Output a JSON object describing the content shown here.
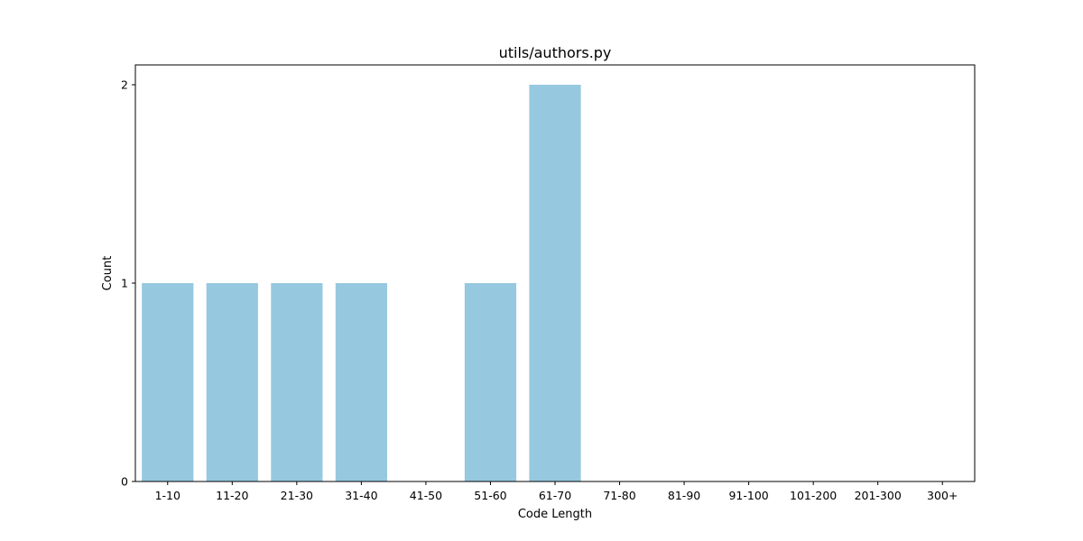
{
  "chart_data": {
    "type": "bar",
    "title": "utils/authors.py",
    "xlabel": "Code Length",
    "ylabel": "Count",
    "categories": [
      "1-10",
      "11-20",
      "21-30",
      "31-40",
      "41-50",
      "51-60",
      "61-70",
      "71-80",
      "81-90",
      "91-100",
      "101-200",
      "201-300",
      "300+"
    ],
    "values": [
      1,
      1,
      1,
      1,
      0,
      1,
      2,
      0,
      0,
      0,
      0,
      0,
      0
    ],
    "yticks": [
      0,
      1,
      2
    ],
    "ylim": [
      0,
      2.1
    ],
    "grid": false,
    "legend": "none",
    "bar_color": "#96c9df"
  }
}
